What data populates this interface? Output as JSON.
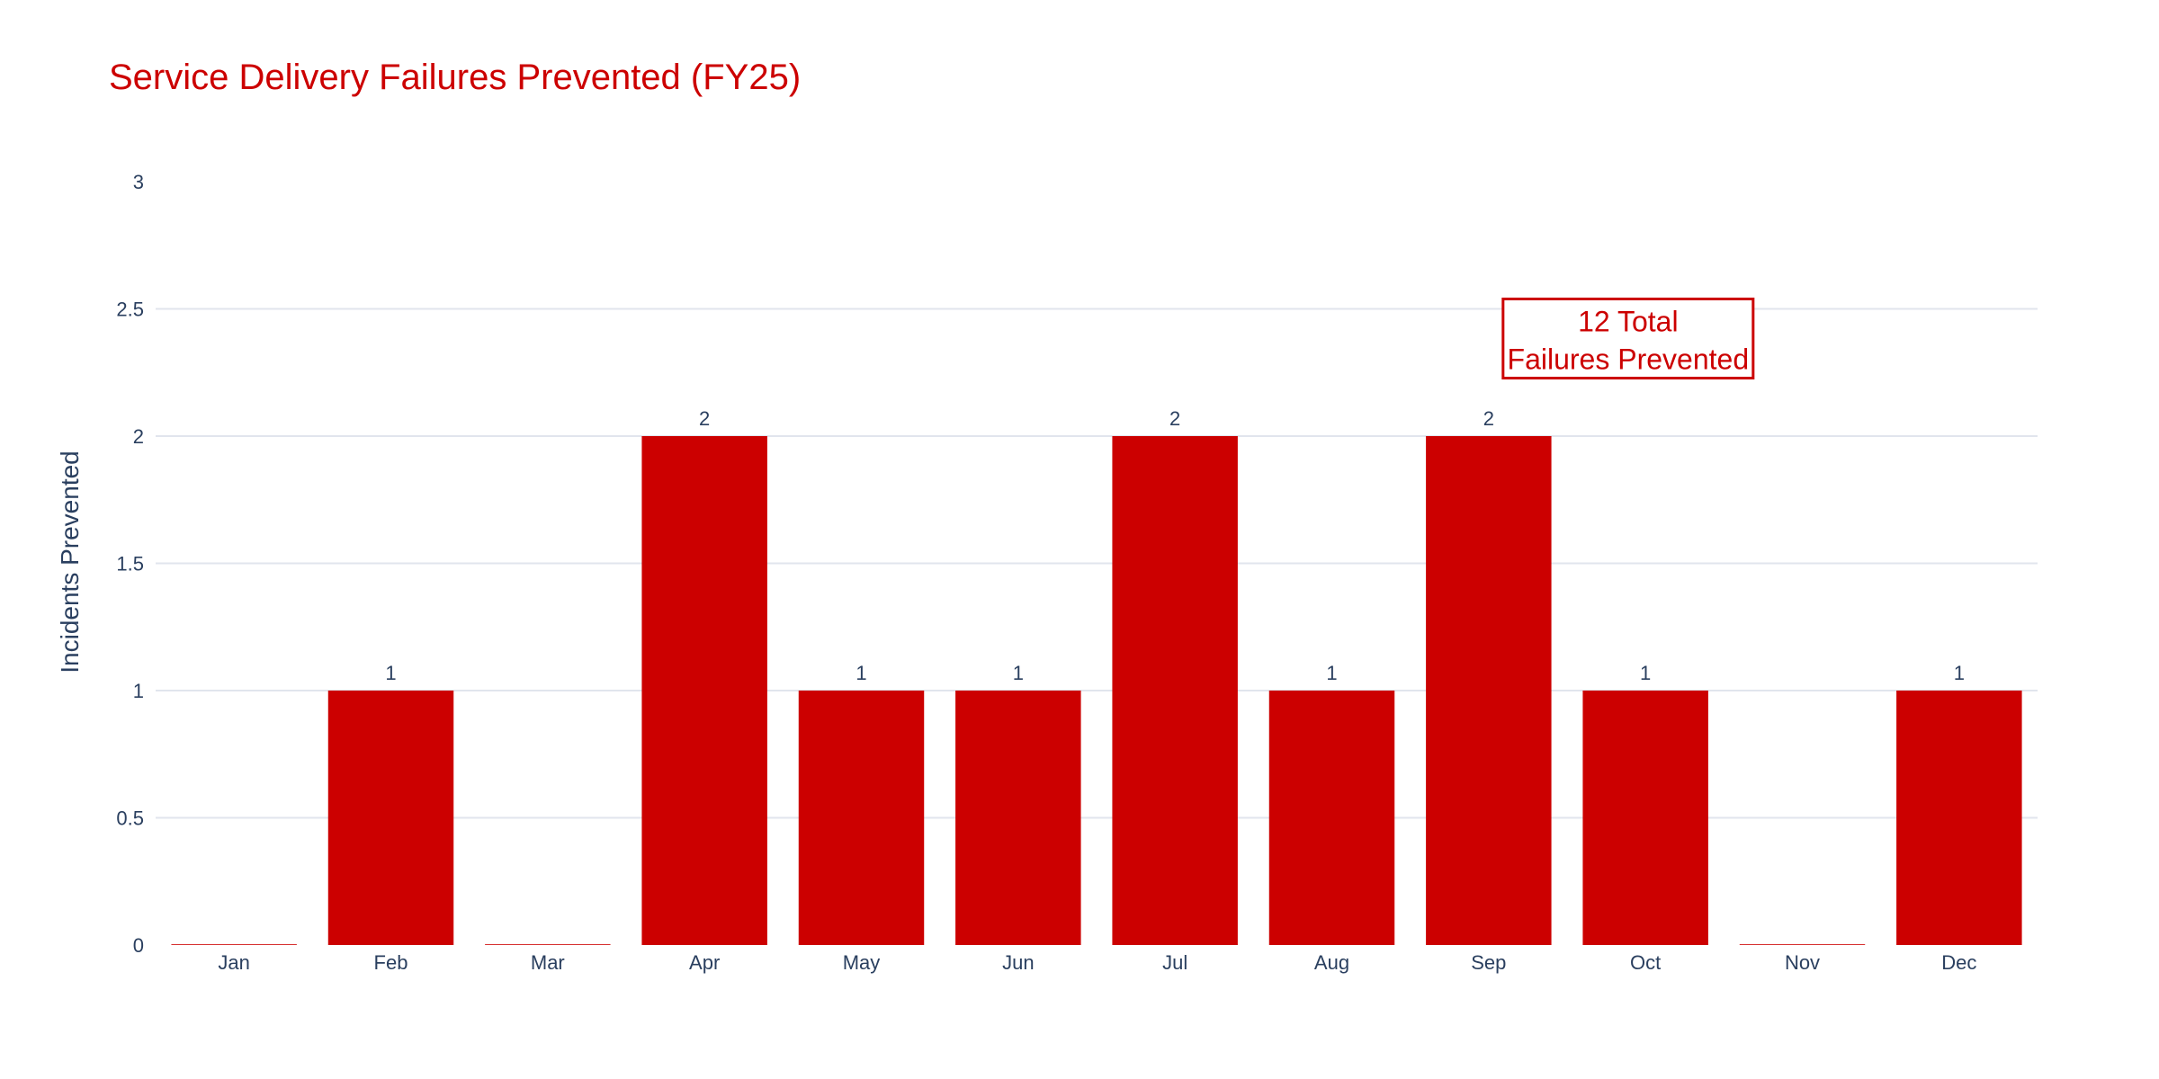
{
  "chart_data": {
    "type": "bar",
    "title": "Service Delivery Failures Prevented (FY25)",
    "xlabel": "",
    "ylabel": "Incidents Prevented",
    "categories": [
      "Jan",
      "Feb",
      "Mar",
      "Apr",
      "May",
      "Jun",
      "Jul",
      "Aug",
      "Sep",
      "Oct",
      "Nov",
      "Dec"
    ],
    "values": [
      0,
      1,
      0,
      2,
      1,
      1,
      2,
      1,
      2,
      1,
      0,
      1
    ],
    "data_labels": [
      "",
      "1",
      "",
      "2",
      "1",
      "1",
      "2",
      "1",
      "2",
      "1",
      "",
      "1"
    ],
    "ylim": [
      0,
      3
    ],
    "yticks": [
      0,
      0.5,
      1,
      1.5,
      2,
      2.5,
      3
    ],
    "ytick_labels": [
      "0",
      "0.5",
      "1",
      "1.5",
      "2",
      "2.5",
      "3"
    ],
    "grid": true,
    "bar_color": "#cc0000",
    "title_color": "#cc0000",
    "annotation": {
      "lines": [
        "12 Total",
        "Failures Prevented"
      ],
      "x": "Sep",
      "y": 2.5,
      "color": "#cc0000"
    }
  }
}
